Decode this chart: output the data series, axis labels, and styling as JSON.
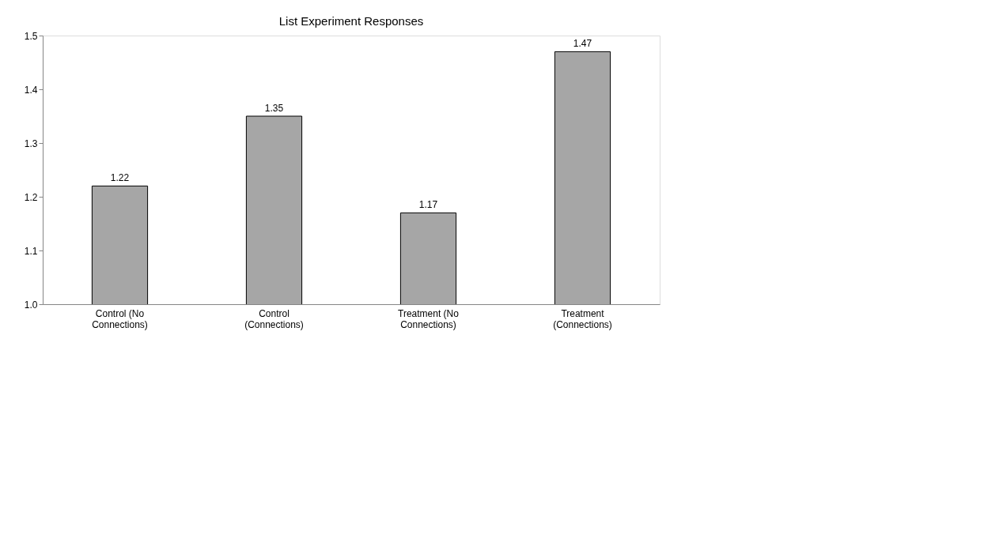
{
  "chart_data": {
    "type": "bar",
    "title": "List Experiment Responses",
    "categories": [
      "Control (No Connections)",
      "Control (Connections)",
      "Treatment (No Connections)",
      "Treatment (Connections)"
    ],
    "values": [
      1.22,
      1.35,
      1.17,
      1.47
    ],
    "color": "#a6a6a6",
    "ylim": [
      1.0,
      1.5
    ],
    "yticks": [
      {
        "value": 1.0,
        "label": "1.0"
      },
      1.1,
      1.2,
      1.3,
      1.4,
      {
        "value": 1.5,
        "label": "1.5"
      }
    ],
    "data_labels": true,
    "grid": false
  }
}
